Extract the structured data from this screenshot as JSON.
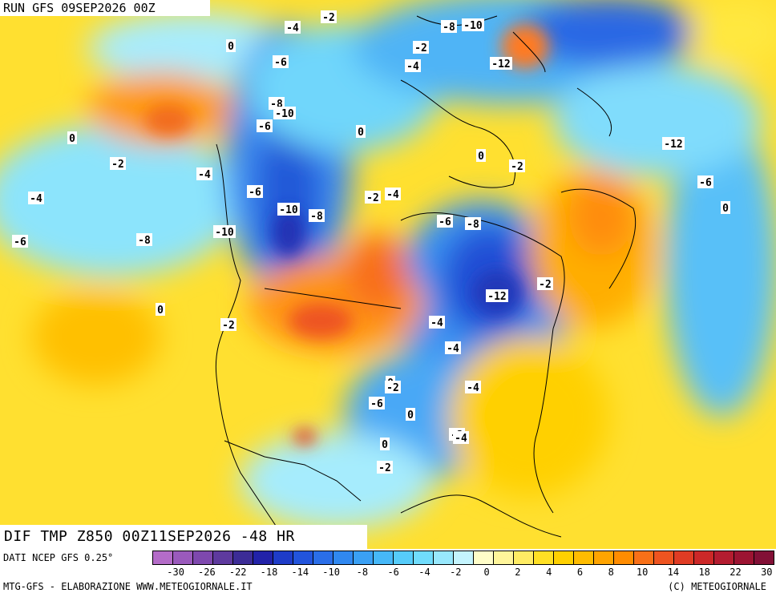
{
  "run_label": "RUN GFS 09SEP2026 00Z",
  "field_title": "DIF TMP Z850 00Z11SEP2026 -48 HR",
  "data_source": "DATI NCEP GFS 0.25°",
  "credit_left": "MTG-GFS - ELABORAZIONE WWW.METEOGIORNALE.IT",
  "credit_right": "(C) METEOGIORNALE",
  "legend": {
    "colors": [
      "#b46cc8",
      "#9a5abc",
      "#7e48ae",
      "#5e3a9e",
      "#3c2c96",
      "#2222a8",
      "#1e3cc8",
      "#2254dc",
      "#2a6ee8",
      "#3088f0",
      "#3aa0f4",
      "#46b8f8",
      "#56ccfa",
      "#70dcfc",
      "#98e8fd",
      "#c4f4fe",
      "#fffdc8",
      "#fff59a",
      "#ffec64",
      "#ffe024",
      "#ffd000",
      "#ffbc00",
      "#ffa400",
      "#ff8c00",
      "#f87018",
      "#ee5420",
      "#e03c24",
      "#cc2828",
      "#b41c30",
      "#9c1432",
      "#821036"
    ],
    "tick_labels": [
      "-30",
      "-26",
      "-22",
      "-18",
      "-14",
      "-10",
      "-8",
      "-6",
      "-4",
      "-2",
      "0",
      "2",
      "4",
      "6",
      "8",
      "10",
      "14",
      "18",
      "22",
      "30"
    ]
  },
  "contour_labels": [
    "-2",
    "-4",
    "-6",
    "-8",
    "-10",
    "-12",
    "0",
    "-2",
    "-4",
    "-6",
    "-8",
    "-10",
    "-12",
    "0",
    "0",
    "-2",
    "-4",
    "-6",
    "-8",
    "-10",
    "-2",
    "-4",
    "-6",
    "-8",
    "-12",
    "0",
    "-2",
    "-4",
    "-6",
    "0",
    "-2",
    "-4",
    "-6",
    "-8",
    "-10",
    "0",
    "-2",
    "-4",
    "0",
    "-2",
    "-4",
    "-6",
    "0",
    "-2",
    "-4",
    "0",
    "-2"
  ]
}
